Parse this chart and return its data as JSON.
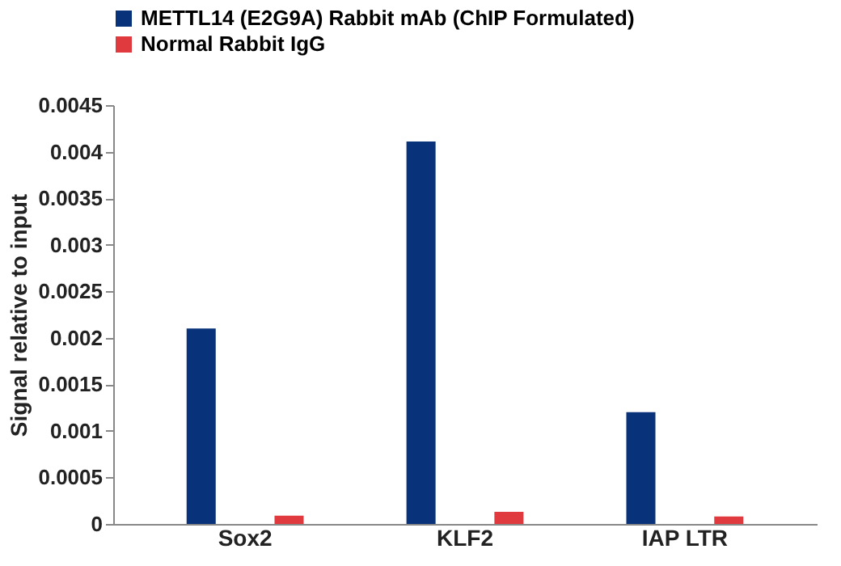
{
  "chart_data": {
    "type": "bar",
    "ylabel": "Signal relative to input",
    "categories": [
      "Sox2",
      "KLF2",
      "IAP LTR"
    ],
    "series": [
      {
        "name": "METTL14 (E2G9A) Rabbit mAb (ChIP Formulated)",
        "color": "#08327a",
        "values": [
          0.0021,
          0.00411,
          0.0012
        ]
      },
      {
        "name": "Normal Rabbit IgG",
        "color": "#e03a3e",
        "values": [
          9e-05,
          0.00013,
          8e-05
        ]
      }
    ],
    "ylim": [
      0,
      0.0045
    ],
    "yticks": [
      0,
      0.0005,
      0.001,
      0.0015,
      0.002,
      0.0025,
      0.003,
      0.0035,
      0.004,
      0.0045
    ],
    "grid": false,
    "legend": "top left"
  }
}
